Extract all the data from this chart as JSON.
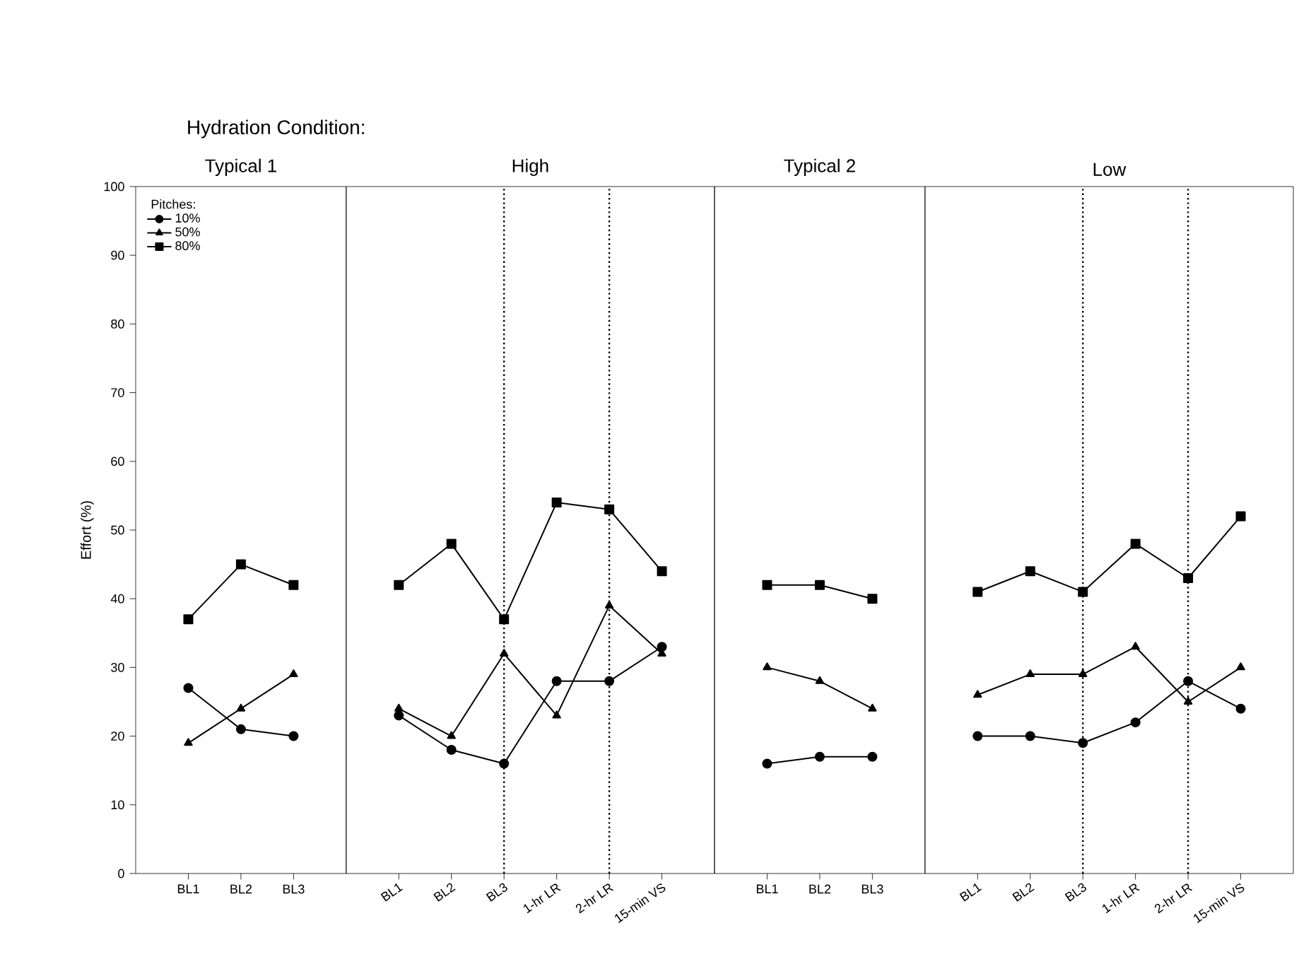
{
  "chart_data": [
    {
      "type": "line",
      "title": "Typical 1",
      "ylabel": "Effort (%)",
      "annotations": [
        "Hydration Condition:"
      ],
      "legend_title": "Pitches:",
      "legend": "top left",
      "categories": [
        "BL1",
        "BL2",
        "BL3"
      ],
      "ylim": [
        0,
        100
      ],
      "yticks": [
        0,
        10,
        20,
        30,
        40,
        50,
        60,
        70,
        80,
        90,
        100
      ],
      "grid": false,
      "series": [
        {
          "name": "10%",
          "color": "#000000",
          "marker": "circle",
          "values": [
            27,
            21,
            20
          ]
        },
        {
          "name": "50%",
          "color": "#000000",
          "marker": "triangle",
          "values": [
            19,
            24,
            29
          ]
        },
        {
          "name": "80%",
          "color": "#000000",
          "marker": "square",
          "values": [
            37,
            45,
            42
          ]
        }
      ]
    },
    {
      "type": "line",
      "title": "High",
      "categories": [
        "BL1",
        "BL2",
        "BL3",
        "1-hr LR",
        "2-hr LR",
        "15-min VS"
      ],
      "ylim": [
        0,
        100
      ],
      "tick_labels": "x",
      "grid": false,
      "ref_lines": [
        {
          "axis": "x",
          "value": "BL3",
          "line_style": "dotted"
        },
        {
          "axis": "x",
          "value": "2-hr LR",
          "line_style": "dotted"
        }
      ],
      "series": [
        {
          "color": "#000000",
          "marker": "circle",
          "values": [
            23,
            18,
            16,
            28,
            28,
            33
          ]
        },
        {
          "color": "#000000",
          "marker": "triangle",
          "values": [
            24,
            20,
            32,
            23,
            39,
            32
          ]
        },
        {
          "color": "#000000",
          "marker": "square",
          "values": [
            42,
            48,
            37,
            54,
            53,
            44
          ]
        }
      ]
    },
    {
      "type": "line",
      "title": "Typical 2",
      "categories": [
        "BL1",
        "BL2",
        "BL3"
      ],
      "ylim": [
        0,
        100
      ],
      "tick_labels": "x",
      "grid": false,
      "series": [
        {
          "color": "#000000",
          "marker": "circle",
          "values": [
            16,
            17,
            17
          ]
        },
        {
          "color": "#000000",
          "marker": "triangle",
          "values": [
            30,
            28,
            24
          ]
        },
        {
          "color": "#000000",
          "marker": "square",
          "values": [
            42,
            42,
            40
          ]
        }
      ]
    },
    {
      "type": "line",
      "title": "Low",
      "categories": [
        "BL1",
        "BL2",
        "BL3",
        "1-hr LR",
        "2-hr LR",
        "15-min VS"
      ],
      "ylim": [
        0,
        100
      ],
      "tick_labels": "x",
      "grid": false,
      "ref_lines": [
        {
          "axis": "x",
          "value": "BL3",
          "line_style": "dotted"
        },
        {
          "axis": "x",
          "value": "2-hr LR",
          "line_style": "dotted"
        }
      ],
      "series": [
        {
          "color": "#000000",
          "marker": "circle",
          "values": [
            20,
            20,
            19,
            22,
            28,
            24
          ]
        },
        {
          "color": "#000000",
          "marker": "triangle",
          "values": [
            26,
            29,
            29,
            33,
            25,
            30
          ]
        },
        {
          "color": "#000000",
          "marker": "square",
          "values": [
            41,
            44,
            41,
            48,
            43,
            52
          ]
        }
      ]
    }
  ]
}
